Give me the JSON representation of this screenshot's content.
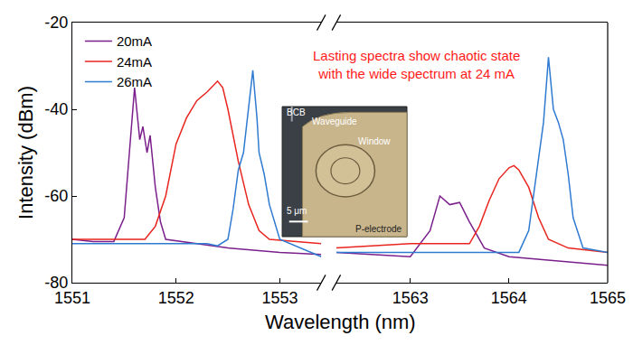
{
  "chart_data": {
    "type": "line",
    "x_label": "Wavelength (nm)",
    "y_label": "Intensity (dBm)",
    "xlim": [
      [
        1551,
        1553.4
      ],
      [
        1562.25,
        1565
      ]
    ],
    "xticks": [
      [
        1551,
        1552,
        1553
      ],
      [
        1563,
        1564,
        1565
      ]
    ],
    "ylim": [
      -80,
      -20
    ],
    "yticks": [
      -80,
      -60,
      -40,
      -20
    ],
    "legend": "upper left",
    "series": [
      {
        "name": "20mA",
        "color": "#7b1f8c",
        "x": [
          1551.0,
          1551.2,
          1551.4,
          1551.5,
          1551.55,
          1551.6,
          1551.65,
          1551.68,
          1551.72,
          1551.75,
          1551.8,
          1551.85,
          1551.9,
          1552.2,
          1552.5,
          1553.0,
          1553.4,
          null,
          1562.25,
          1562.6,
          1563.0,
          1563.2,
          1563.3,
          1563.4,
          1563.5,
          1563.6,
          1563.75,
          1564.0,
          1564.5,
          1565.0
        ],
        "values": [
          -70,
          -70.5,
          -70.5,
          -65,
          -50,
          -35,
          -47,
          -44,
          -50,
          -46,
          -58,
          -66,
          -70,
          -71,
          -72,
          -73,
          -73.5,
          null,
          -73,
          -73.5,
          -74,
          -68,
          -60,
          -62,
          -61.5,
          -66,
          -72,
          -74,
          -75,
          -76
        ]
      },
      {
        "name": "24mA",
        "color": "#e8251f",
        "x": [
          1551.0,
          1551.4,
          1551.7,
          1551.8,
          1551.9,
          1552.0,
          1552.1,
          1552.2,
          1552.3,
          1552.4,
          1552.45,
          1552.5,
          1552.6,
          1552.7,
          1552.8,
          1552.9,
          1553.4,
          null,
          1562.25,
          1563.0,
          1563.6,
          1563.7,
          1563.8,
          1563.9,
          1564.0,
          1564.05,
          1564.1,
          1564.2,
          1564.3,
          1564.4,
          1564.6,
          1565.0
        ],
        "values": [
          -70,
          -70,
          -70,
          -67,
          -60,
          -48,
          -42,
          -38,
          -36,
          -33.5,
          -35,
          -40,
          -52,
          -62,
          -68,
          -70,
          -71,
          null,
          -72,
          -71,
          -71,
          -67,
          -61,
          -56,
          -53.5,
          -53,
          -54,
          -58,
          -65,
          -70,
          -72,
          -73
        ]
      },
      {
        "name": "26mA",
        "color": "#2f7bd1",
        "x": [
          1551.0,
          1551.6,
          1552.3,
          1552.4,
          1552.5,
          1552.55,
          1552.6,
          1552.65,
          1552.7,
          1552.74,
          1552.78,
          1552.8,
          1552.85,
          1552.9,
          1553.0,
          1553.4,
          null,
          1562.25,
          1563.0,
          1564.1,
          1564.2,
          1564.25,
          1564.3,
          1564.35,
          1564.4,
          1564.45,
          1564.5,
          1564.55,
          1564.6,
          1564.65,
          1564.75,
          1565.0
        ],
        "values": [
          -71,
          -71,
          -71,
          -71.5,
          -70,
          -63,
          -54,
          -50,
          -40,
          -31,
          -42,
          -50,
          -55,
          -62,
          -70,
          -74,
          null,
          -73,
          -73,
          -73,
          -68,
          -60,
          -52,
          -43,
          -28,
          -40,
          -43,
          -47,
          -55,
          -65,
          -72,
          -73
        ]
      }
    ],
    "annotations": [
      {
        "text": "Lasting spectra show chaotic state\nwith the wide spectrum at 24 mA",
        "color": "#ff1a1a"
      }
    ],
    "inset": {
      "labels": [
        "BCB",
        "Waveguide",
        "Window",
        "5 μm",
        "P-electrode"
      ]
    }
  }
}
